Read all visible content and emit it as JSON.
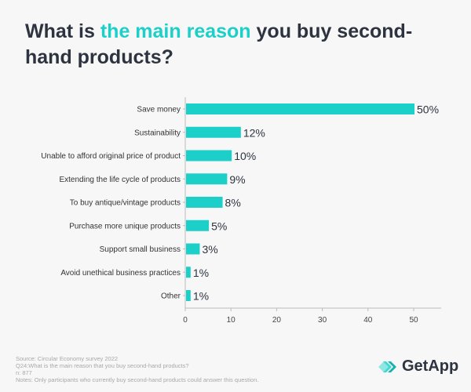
{
  "title": {
    "part1": "What is ",
    "highlight": "the main reason",
    "part2": " you buy second-hand products?"
  },
  "chart_data": {
    "type": "bar",
    "orientation": "horizontal",
    "title": "What is the main reason you buy second-hand products?",
    "categories": [
      "Save money",
      "Sustainability",
      "Unable to afford original price of product",
      "Extending the life cycle of products",
      "To buy antique/vintage products",
      "Purchase more unique products",
      "Support small business",
      "Avoid unethical business practices",
      "Other"
    ],
    "values": [
      50,
      12,
      10,
      9,
      8,
      5,
      3,
      1,
      1
    ],
    "labels": [
      "50%",
      "12%",
      "10%",
      "9%",
      "8%",
      "5%",
      "3%",
      "1%",
      "1%"
    ],
    "xlim": [
      0,
      55
    ],
    "xticks": [
      0,
      10,
      20,
      30,
      40,
      50
    ],
    "xlabel": "",
    "ylabel": "",
    "bar_color": "#1ccfc9"
  },
  "footer": {
    "source": "Source: Circular Economy survey 2022",
    "question": "Q24:What is the main reason that you buy second-hand products?",
    "n": "n: 877",
    "notes": "Notes: Only participants who currently buy second-hand products could answer this question."
  },
  "logo": {
    "text": "GetApp"
  }
}
